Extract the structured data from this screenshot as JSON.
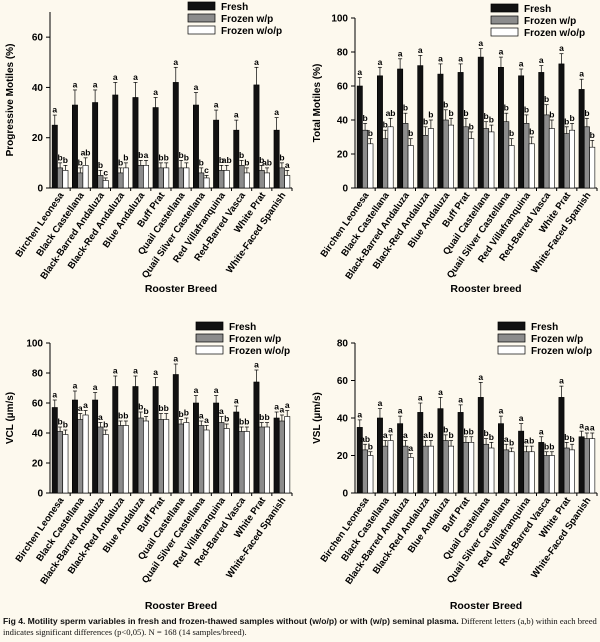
{
  "colors": {
    "fresh": "#111111",
    "frozen_wp": "#8c8c8c",
    "frozen_wop": "#ffffff",
    "background": "#fdf9ee"
  },
  "caption": {
    "label": "Fig 4.",
    "title": "Motility sperm variables in fresh and frozen-thawed samples without (w/o/p) or with (w/p) seminal plasma.",
    "body": "Different letters (a,b) within each breed indicates significant differences (p<0,05). N = 168 (14 samples/breed)."
  },
  "chart_data": [
    {
      "type": "bar",
      "title": "",
      "ylabel": "Progressive Motiles (%)",
      "xlabel": "Rooster Breed",
      "ylim": [
        0,
        70
      ],
      "yticks": [
        0,
        20,
        40,
        60
      ],
      "legend": [
        "Fresh",
        "Frozen w/p",
        "Frozen w/o/p"
      ],
      "legend_position": "top-right",
      "categories": [
        "Birchen Leonesa",
        "Black Castellana",
        "Black-Barred Andaluza",
        "Black-Red Andaluza",
        "Blue Andaluza",
        "Buff Prat",
        "Quail Castellana",
        "Quail Silver Castellana",
        "Red Villafranquina",
        "Red-Barred Vasca",
        "White Prat",
        "White-Faced Spanish"
      ],
      "series": [
        {
          "name": "Fresh",
          "values": [
            25,
            33,
            34,
            37,
            36,
            32,
            42,
            33,
            27,
            23,
            41,
            23
          ],
          "errors": [
            4,
            6,
            5,
            5,
            6,
            4,
            6,
            5,
            4,
            4,
            7,
            5
          ]
        },
        {
          "name": "Frozen w/p",
          "values": [
            8,
            6,
            5,
            6,
            9,
            8,
            8,
            6,
            7,
            9,
            7,
            8
          ],
          "errors": [
            2,
            2,
            2,
            2,
            2,
            2,
            3,
            2,
            2,
            2,
            2,
            2
          ]
        },
        {
          "name": "Frozen w/o/p",
          "values": [
            7,
            9,
            3,
            8,
            9,
            8,
            8,
            4,
            7,
            6,
            6,
            5
          ],
          "errors": [
            2,
            3,
            1,
            2,
            2,
            2,
            2,
            1,
            2,
            2,
            2,
            2
          ]
        }
      ],
      "letters": [
        [
          "a",
          "b",
          "b"
        ],
        [
          "a",
          "b",
          "ab"
        ],
        [
          "a",
          "b",
          "c"
        ],
        [
          "a",
          "b",
          "b"
        ],
        [
          "a",
          "b",
          "a"
        ],
        [
          "a",
          "b",
          "b"
        ],
        [
          "a",
          "b",
          "b"
        ],
        [
          "a",
          "b",
          "c"
        ],
        [
          "a",
          "b",
          "ab"
        ],
        [
          "a",
          "b",
          "b"
        ],
        [
          "a",
          "b",
          "ab"
        ],
        [
          "a",
          "b",
          "a"
        ]
      ]
    },
    {
      "type": "bar",
      "title": "",
      "ylabel": "Total Motiles (%)",
      "xlabel": "Rooster breed",
      "ylim": [
        0,
        100
      ],
      "yticks": [
        0,
        20,
        40,
        60,
        80,
        100
      ],
      "legend": [
        "Fresh",
        "Frozen w/p",
        "Frozen w/o/p"
      ],
      "legend_position": "top-right",
      "categories": [
        "Birchen Leonesa",
        "Black Castellana",
        "Black-Barred Andaluza",
        "Black-Red Andaluza",
        "Blue Andaluza",
        "Buff Prat",
        "Quail Castellana",
        "Quail Silver Castellana",
        "Red Villafranquina",
        "Red-Barred Vasca",
        "White Prat",
        "White-Faced Spanish"
      ],
      "series": [
        {
          "name": "Fresh",
          "values": [
            60,
            66,
            70,
            72,
            67,
            68,
            77,
            71,
            66,
            68,
            73,
            58
          ],
          "errors": [
            5,
            5,
            6,
            6,
            6,
            5,
            5,
            6,
            4,
            4,
            6,
            6
          ]
        },
        {
          "name": "Frozen w/p",
          "values": [
            34,
            29,
            38,
            31,
            40,
            36,
            35,
            39,
            38,
            43,
            32,
            36
          ],
          "errors": [
            4,
            5,
            6,
            5,
            6,
            5,
            4,
            5,
            5,
            6,
            4,
            5
          ]
        },
        {
          "name": "Frozen w/o/p",
          "values": [
            26,
            36,
            25,
            35,
            37,
            29,
            33,
            25,
            26,
            35,
            34,
            24
          ],
          "errors": [
            3,
            5,
            4,
            5,
            4,
            4,
            4,
            4,
            4,
            5,
            4,
            4
          ]
        }
      ],
      "letters": [
        [
          "a",
          "b",
          "b"
        ],
        [
          "a",
          "b",
          "ab"
        ],
        [
          "a",
          "b",
          "b"
        ],
        [
          "a",
          "b",
          "b"
        ],
        [
          "a",
          "b",
          "b"
        ],
        [
          "a",
          "b",
          "b"
        ],
        [
          "a",
          "b",
          "b"
        ],
        [
          "a",
          "b",
          "b"
        ],
        [
          "a",
          "b",
          "b"
        ],
        [
          "a",
          "b",
          "b"
        ],
        [
          "a",
          "b",
          "b"
        ],
        [
          "a",
          "b",
          "b"
        ]
      ]
    },
    {
      "type": "bar",
      "title": "",
      "ylabel": "VCL (µm/s)",
      "xlabel": "Rooster Breed",
      "ylim": [
        0,
        100
      ],
      "yticks": [
        0,
        20,
        40,
        60,
        80,
        100
      ],
      "legend": [
        "Fresh",
        "Frozen w/p",
        "Frozen w/o/p"
      ],
      "legend_position": "top-right",
      "categories": [
        "Birchen Leonesa",
        "Black Castellana",
        "Black-Barred Andaluza",
        "Black-Red Andaluza",
        "Blue Andaluza",
        "Buff Prat",
        "Quail Castellana",
        "Quail Silver Castellana",
        "Red Villafranquina",
        "Red-Barred Vasca",
        "White Prat",
        "White-Faced Spanish"
      ],
      "series": [
        {
          "name": "Fresh",
          "values": [
            57,
            62,
            62,
            71,
            71,
            71,
            79,
            60,
            60,
            54,
            74,
            50
          ],
          "errors": [
            5,
            6,
            5,
            7,
            7,
            6,
            7,
            5,
            5,
            4,
            8,
            4
          ]
        },
        {
          "name": "Frozen w/p",
          "values": [
            41,
            49,
            44,
            45,
            50,
            49,
            46,
            45,
            47,
            41,
            44,
            48
          ],
          "errors": [
            3,
            4,
            3,
            3,
            4,
            4,
            3,
            3,
            4,
            3,
            3,
            4
          ]
        },
        {
          "name": "Frozen w/o/p",
          "values": [
            39,
            52,
            39,
            45,
            48,
            49,
            47,
            42,
            43,
            41,
            44,
            51
          ],
          "errors": [
            3,
            3,
            3,
            3,
            3,
            4,
            3,
            3,
            3,
            3,
            3,
            4
          ]
        }
      ],
      "letters": [
        [
          "a",
          "b",
          "b"
        ],
        [
          "a",
          "a",
          "a"
        ],
        [
          "a",
          "a",
          "b"
        ],
        [
          "a",
          "b",
          "b"
        ],
        [
          "a",
          "b",
          "b"
        ],
        [
          "a",
          "b",
          "b"
        ],
        [
          "a",
          "b",
          "b"
        ],
        [
          "a",
          "a",
          "a"
        ],
        [
          "a",
          "a",
          "b"
        ],
        [
          "a",
          "b",
          "b"
        ],
        [
          "a",
          "b",
          "b"
        ],
        [
          "a",
          "a",
          "a"
        ]
      ]
    },
    {
      "type": "bar",
      "title": "",
      "ylabel": "VSL (µm/s)",
      "xlabel": "Rooster Breed",
      "ylim": [
        0,
        80
      ],
      "yticks": [
        0,
        20,
        40,
        60,
        80
      ],
      "legend": [
        "Fresh",
        "Frozen w/p",
        "Frozen w/o/p"
      ],
      "legend_position": "top-right",
      "categories": [
        "Birchen Leonesa",
        "Black Castellana",
        "Black-Barred Andaluza",
        "Black-Red Andaluza",
        "Blue Andaluza",
        "Buff Prat",
        "Quail Castellana",
        "Quail Silver Castellana",
        "Red Villafranquina",
        "Red-Barred Vasca",
        "White Prat",
        "White-Faced Spanish"
      ],
      "series": [
        {
          "name": "Fresh",
          "values": [
            35,
            40,
            37,
            43,
            45,
            43,
            51,
            37,
            33,
            27,
            51,
            30
          ],
          "errors": [
            4,
            5,
            4,
            5,
            6,
            4,
            8,
            4,
            4,
            3,
            6,
            3
          ]
        },
        {
          "name": "Frozen w/p",
          "values": [
            23,
            25,
            25,
            25,
            28,
            27,
            26,
            23,
            22,
            20,
            24,
            29
          ],
          "errors": [
            3,
            3,
            3,
            3,
            3,
            3,
            3,
            3,
            3,
            2,
            3,
            3
          ]
        },
        {
          "name": "Frozen w/o/p",
          "values": [
            20,
            28,
            19,
            25,
            25,
            27,
            24,
            22,
            22,
            20,
            23,
            29
          ],
          "errors": [
            2,
            3,
            2,
            3,
            3,
            3,
            3,
            2,
            3,
            2,
            3,
            3
          ]
        }
      ],
      "letters": [
        [
          "a",
          "ab",
          "b"
        ],
        [
          "a",
          "a",
          "a"
        ],
        [
          "a",
          "a",
          "a"
        ],
        [
          "a",
          "a",
          "b"
        ],
        [
          "a",
          "b",
          "b"
        ],
        [
          "a",
          "b",
          "b"
        ],
        [
          "a",
          "b",
          "b"
        ],
        [
          "a",
          "a",
          "b"
        ],
        [
          "a",
          "a",
          "b"
        ],
        [
          "a",
          "b",
          "b"
        ],
        [
          "a",
          "b",
          "b"
        ],
        [
          "a",
          "a",
          "a"
        ]
      ]
    }
  ]
}
